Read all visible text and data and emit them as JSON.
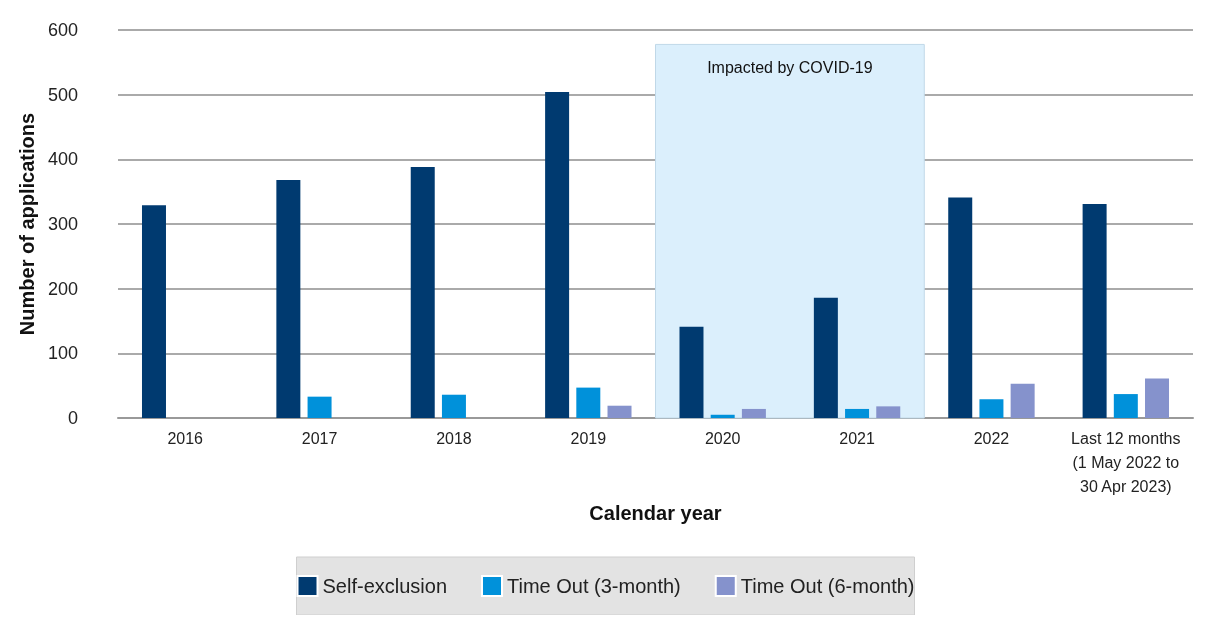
{
  "chart_data": {
    "type": "bar",
    "xlabel": "Calendar year",
    "ylabel": "Number of applications",
    "categories": [
      "2016",
      "2017",
      "2018",
      "2019",
      "2020",
      "2021",
      "2022",
      "Last 12 months\n(1 May 2022 to\n30 Apr 2023)"
    ],
    "series": [
      {
        "name": "Self-exclusion",
        "color": "#003a70",
        "values": [
          329,
          368,
          388,
          504,
          141,
          186,
          341,
          331
        ]
      },
      {
        "name": "Time Out (3-month)",
        "color": "#0091da",
        "values": [
          null,
          33,
          36,
          47,
          5,
          14,
          29,
          37
        ]
      },
      {
        "name": "Time Out (6-month)",
        "color": "#8592cc",
        "values": [
          null,
          null,
          null,
          19,
          14,
          18,
          53,
          61
        ]
      }
    ],
    "ylim": [
      0,
      600
    ],
    "yticks": [
      0,
      100,
      200,
      300,
      400,
      500,
      600
    ],
    "grid": "y",
    "legend": "bottom",
    "bands": [
      {
        "axis": "x",
        "from": "2020",
        "to": "2021",
        "label": "Impacted by COVID-19",
        "color": "#dbeffc"
      }
    ]
  }
}
